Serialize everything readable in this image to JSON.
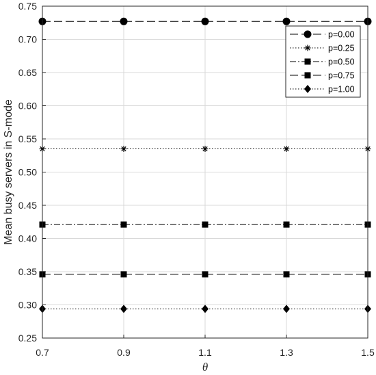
{
  "chart_data": {
    "type": "line",
    "title": "",
    "xlabel": "θ",
    "ylabel": "Mean busy servers in S-mode",
    "x": [
      0.7,
      0.9,
      1.1,
      1.3,
      1.5
    ],
    "x_tick_labels": [
      "0.7",
      "0.9",
      "1.1",
      "1.3",
      "1.5"
    ],
    "y_tick_labels": [
      "0.25",
      "0.30",
      "0.35",
      "0.40",
      "0.45",
      "0.50",
      "0.55",
      "0.60",
      "0.65",
      "0.70",
      "0.75"
    ],
    "xlim": [
      0.7,
      1.5
    ],
    "ylim": [
      0.25,
      0.75
    ],
    "grid": true,
    "legend_placement": "top-right",
    "series": [
      {
        "name": "p=0.00",
        "values": [
          0.727,
          0.727,
          0.727,
          0.727,
          0.727
        ],
        "marker": "circle",
        "dash": "long-dash"
      },
      {
        "name": "p=0.25",
        "values": [
          0.535,
          0.535,
          0.535,
          0.535,
          0.535
        ],
        "marker": "asterisk",
        "dash": "dotted"
      },
      {
        "name": "p=0.50",
        "values": [
          0.421,
          0.421,
          0.421,
          0.421,
          0.421
        ],
        "marker": "square",
        "dash": "dash-dot"
      },
      {
        "name": "p=0.75",
        "values": [
          0.346,
          0.346,
          0.346,
          0.346,
          0.346
        ],
        "marker": "square",
        "dash": "long-dash"
      },
      {
        "name": "p=1.00",
        "values": [
          0.294,
          0.294,
          0.294,
          0.294,
          0.294
        ],
        "marker": "diamond",
        "dash": "dotted"
      }
    ],
    "colors": {
      "line": "#000000",
      "grid": "#d9d9d9",
      "axis": "#262626"
    }
  }
}
